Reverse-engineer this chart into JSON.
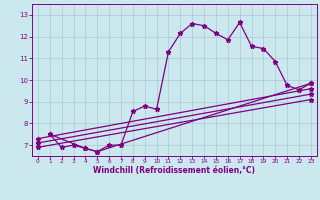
{
  "title": "",
  "xlabel": "Windchill (Refroidissement éolien,°C)",
  "bg_color": "#cce8ef",
  "grid_color": "#aac8d4",
  "line_color": "#800080",
  "axis_color": "#800080",
  "xlim": [
    -0.5,
    23.5
  ],
  "ylim": [
    6.5,
    13.5
  ],
  "xticks": [
    0,
    1,
    2,
    3,
    4,
    5,
    6,
    7,
    8,
    9,
    10,
    11,
    12,
    13,
    14,
    15,
    16,
    17,
    18,
    19,
    20,
    21,
    22,
    23
  ],
  "yticks": [
    7,
    8,
    9,
    10,
    11,
    12,
    13
  ],
  "series1": [
    [
      1,
      7.5
    ],
    [
      2,
      6.9
    ],
    [
      3,
      7.0
    ],
    [
      4,
      6.85
    ],
    [
      5,
      6.7
    ],
    [
      6,
      7.0
    ],
    [
      7,
      7.0
    ],
    [
      8,
      8.55
    ],
    [
      9,
      8.8
    ],
    [
      10,
      8.65
    ],
    [
      11,
      11.3
    ],
    [
      12,
      12.15
    ],
    [
      13,
      12.6
    ],
    [
      14,
      12.5
    ],
    [
      15,
      12.15
    ],
    [
      16,
      11.85
    ],
    [
      17,
      12.65
    ],
    [
      18,
      11.55
    ],
    [
      19,
      11.45
    ],
    [
      20,
      10.85
    ],
    [
      21,
      9.75
    ],
    [
      22,
      9.55
    ],
    [
      23,
      9.85
    ]
  ],
  "series2": [
    [
      1,
      7.5
    ],
    [
      4,
      6.85
    ],
    [
      5,
      6.7
    ],
    [
      23,
      9.85
    ]
  ],
  "series3": [
    [
      0,
      7.3
    ],
    [
      23,
      9.6
    ]
  ],
  "series4": [
    [
      0,
      7.1
    ],
    [
      23,
      9.35
    ]
  ],
  "series5": [
    [
      0,
      6.9
    ],
    [
      23,
      9.1
    ]
  ]
}
